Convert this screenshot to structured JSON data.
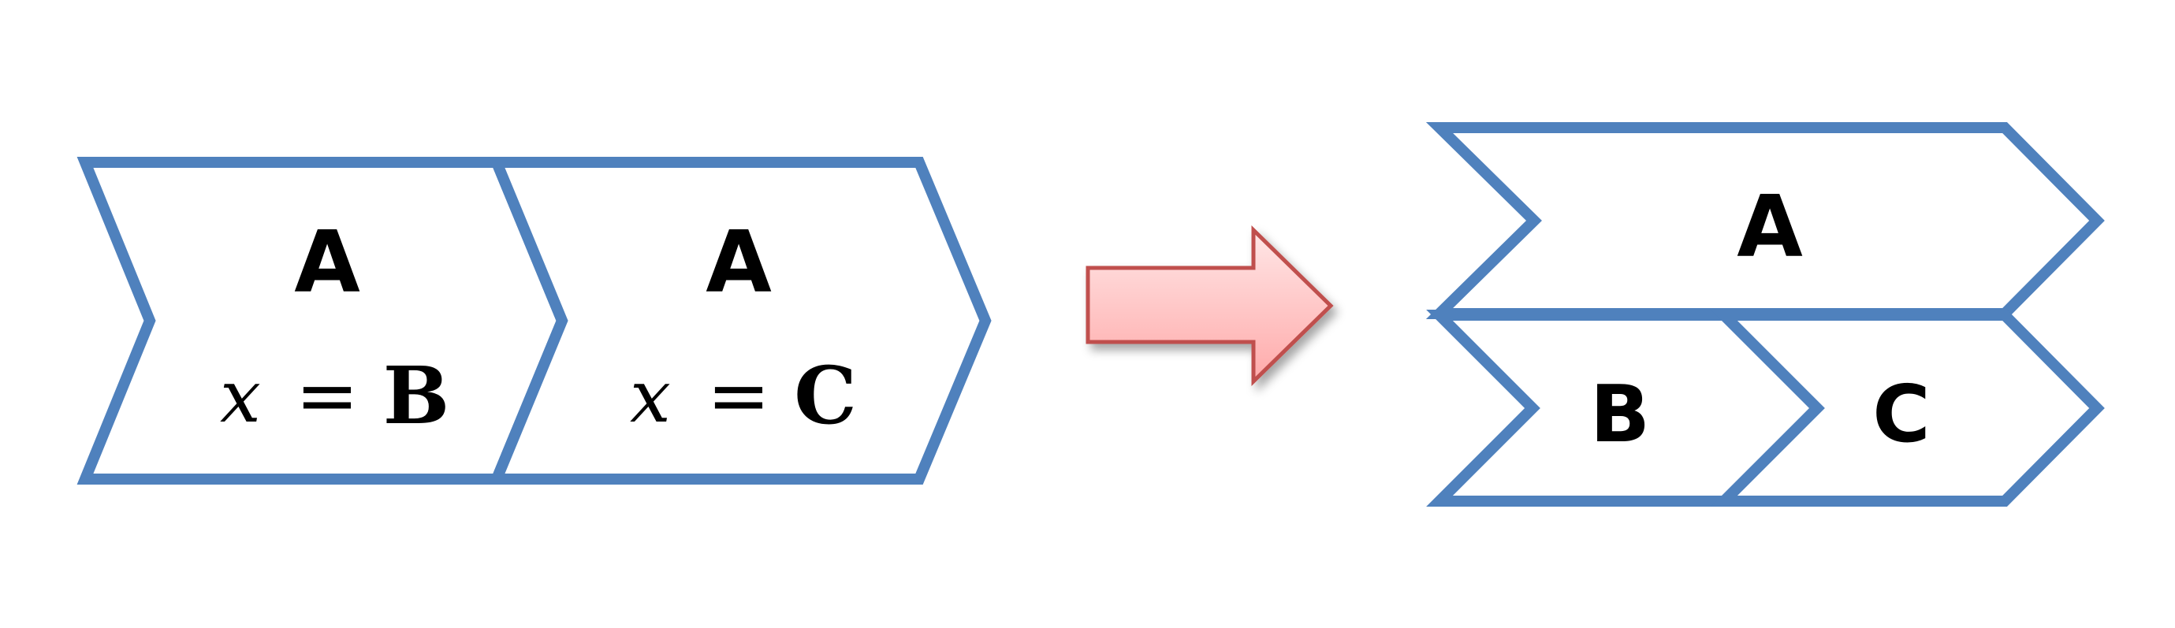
{
  "colors": {
    "chevron_stroke": "#4f81bd",
    "arrow_fill_top": "#ffe0e0",
    "arrow_fill_bottom": "#ffb3b3",
    "arrow_stroke": "#c0504d"
  },
  "before": {
    "left_chevron": {
      "title": "A",
      "variable": "x",
      "equals": "=",
      "value": "B"
    },
    "right_chevron": {
      "title": "A",
      "variable": "x",
      "equals": "=",
      "value": "C"
    }
  },
  "transform_arrow": {
    "icon": "right-arrow-icon"
  },
  "after": {
    "top_chevron": {
      "title": "A"
    },
    "bottom_left_chevron": {
      "title": "B"
    },
    "bottom_right_chevron": {
      "title": "C"
    }
  }
}
